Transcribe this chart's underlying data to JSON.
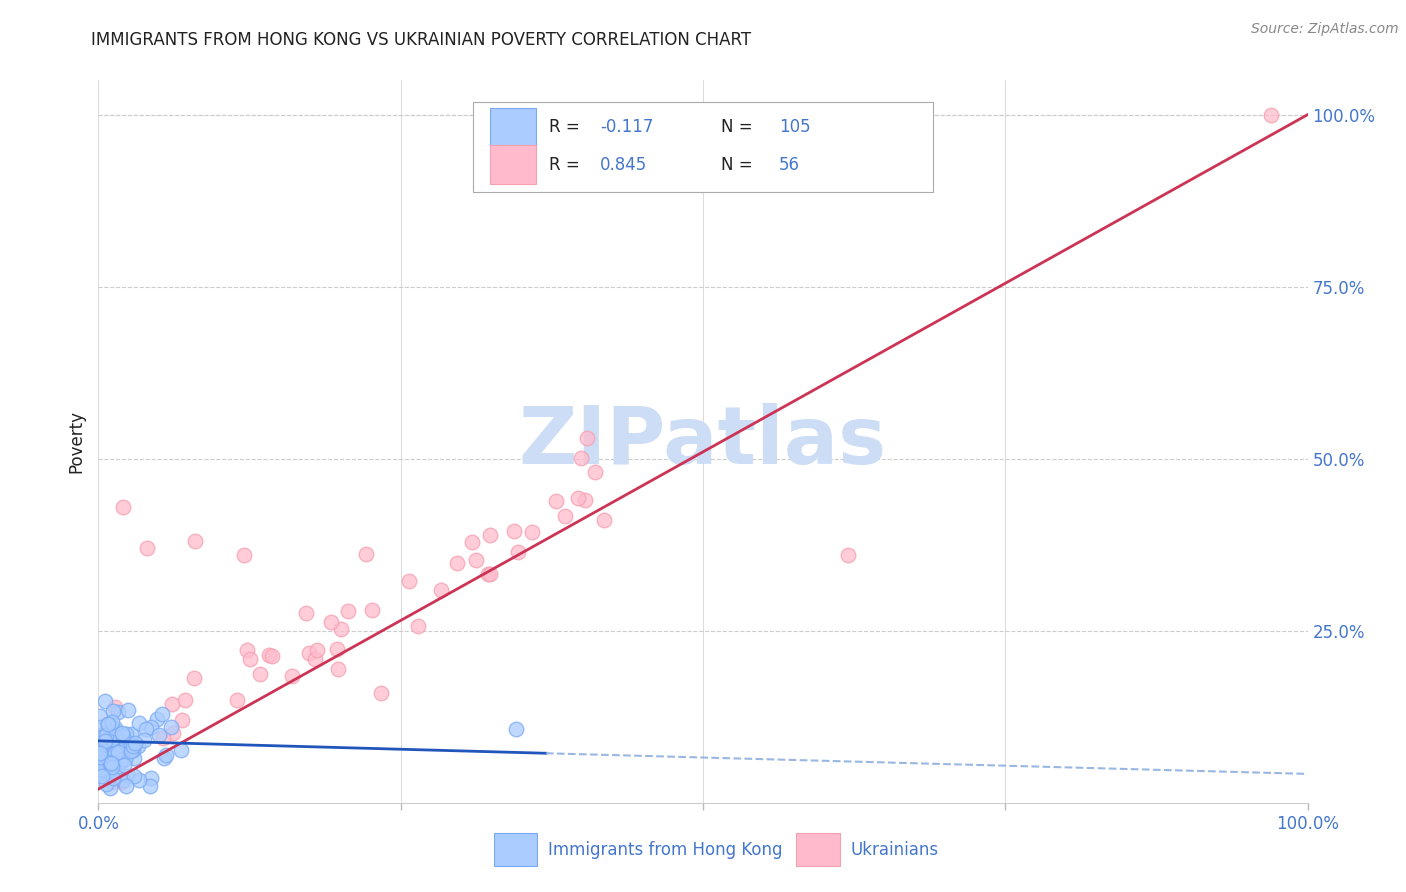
{
  "title": "IMMIGRANTS FROM HONG KONG VS UKRAINIAN POVERTY CORRELATION CHART",
  "source": "Source: ZipAtlas.com",
  "ylabel": "Poverty",
  "legend_hk_r": "-0.117",
  "legend_hk_n": "105",
  "legend_uk_r": "0.845",
  "legend_uk_n": "56",
  "legend_label_hk": "Immigrants from Hong Kong",
  "legend_label_uk": "Ukrainians",
  "hk_color": "#7aaaf5",
  "hk_face_color": "#aaccff",
  "uk_color": "#f5a0b0",
  "uk_face_color": "#ffbbcc",
  "hk_line_color": "#2255bb",
  "hk_line_color_dash": "#88aadd",
  "uk_line_color": "#cc3355",
  "axis_label_color": "#4477cc",
  "text_black": "#222222",
  "background_color": "#ffffff",
  "grid_color": "#cccccc",
  "title_fontsize": 12,
  "watermark": "ZIPatlas",
  "watermark_color": "#ccddf5"
}
